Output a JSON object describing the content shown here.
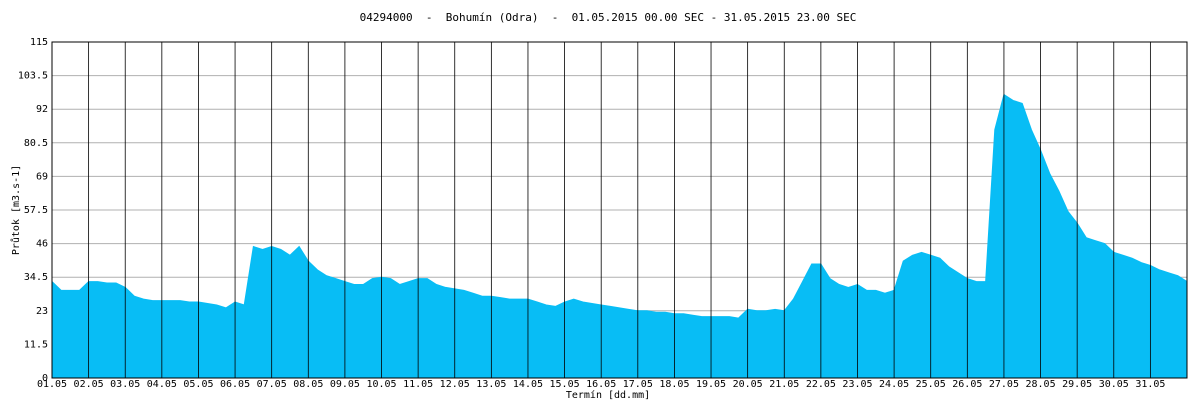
{
  "chart_data": {
    "type": "area",
    "title": "04294000  -  Bohumín (Odra)  -  01.05.2015 00.00 SEC - 31.05.2015 23.00 SEC",
    "ylabel": "Průtok [m3.s-1]",
    "xlabel": "Termín [dd.mm]",
    "color": "#08bdf5",
    "grid": true,
    "xlim": [
      0,
      744
    ],
    "ylim": [
      0,
      115
    ],
    "yticks": [
      0,
      11.5,
      23,
      34.5,
      46,
      57.5,
      69,
      80.5,
      92,
      103.5,
      115
    ],
    "xticks": [
      {
        "value": 0,
        "label": "01.05"
      },
      {
        "value": 24,
        "label": "02.05"
      },
      {
        "value": 48,
        "label": "03.05"
      },
      {
        "value": 72,
        "label": "04.05"
      },
      {
        "value": 96,
        "label": "05.05"
      },
      {
        "value": 120,
        "label": "06.05"
      },
      {
        "value": 144,
        "label": "07.05"
      },
      {
        "value": 168,
        "label": "08.05"
      },
      {
        "value": 192,
        "label": "09.05"
      },
      {
        "value": 216,
        "label": "10.05"
      },
      {
        "value": 240,
        "label": "11.05"
      },
      {
        "value": 264,
        "label": "12.05"
      },
      {
        "value": 288,
        "label": "13.05"
      },
      {
        "value": 312,
        "label": "14.05"
      },
      {
        "value": 336,
        "label": "15.05"
      },
      {
        "value": 360,
        "label": "16.05"
      },
      {
        "value": 384,
        "label": "17.05"
      },
      {
        "value": 408,
        "label": "18.05"
      },
      {
        "value": 432,
        "label": "19.05"
      },
      {
        "value": 456,
        "label": "20.05"
      },
      {
        "value": 480,
        "label": "21.05"
      },
      {
        "value": 504,
        "label": "22.05"
      },
      {
        "value": 528,
        "label": "23.05"
      },
      {
        "value": 552,
        "label": "24.05"
      },
      {
        "value": 576,
        "label": "25.05"
      },
      {
        "value": 600,
        "label": "26.05"
      },
      {
        "value": 624,
        "label": "27.05"
      },
      {
        "value": 648,
        "label": "28.05"
      },
      {
        "value": 672,
        "label": "29.05"
      },
      {
        "value": 696,
        "label": "30.05"
      },
      {
        "value": 720,
        "label": "31.05"
      }
    ],
    "x": [
      0,
      6,
      12,
      18,
      24,
      30,
      36,
      42,
      48,
      54,
      60,
      66,
      72,
      78,
      84,
      90,
      96,
      102,
      108,
      114,
      120,
      126,
      132,
      138,
      144,
      150,
      156,
      162,
      168,
      174,
      180,
      186,
      192,
      198,
      204,
      210,
      216,
      222,
      228,
      234,
      240,
      246,
      252,
      258,
      264,
      270,
      276,
      282,
      288,
      294,
      300,
      306,
      312,
      318,
      324,
      330,
      336,
      342,
      348,
      354,
      360,
      366,
      372,
      378,
      384,
      390,
      396,
      402,
      408,
      414,
      420,
      426,
      432,
      438,
      444,
      450,
      456,
      462,
      468,
      474,
      480,
      486,
      492,
      498,
      504,
      510,
      516,
      522,
      528,
      534,
      540,
      546,
      552,
      558,
      564,
      570,
      576,
      582,
      588,
      594,
      600,
      606,
      612,
      618,
      624,
      630,
      636,
      642,
      648,
      654,
      660,
      666,
      672,
      678,
      684,
      690,
      696,
      702,
      708,
      714,
      720,
      726,
      732,
      738,
      744
    ],
    "values": [
      33,
      30,
      30,
      30,
      33,
      33,
      32.5,
      32.5,
      31,
      28,
      27,
      26.5,
      26.5,
      26.5,
      26.5,
      26,
      26,
      25.5,
      25,
      24,
      26,
      25,
      45,
      44,
      45,
      44,
      42,
      45,
      40,
      37,
      35,
      34,
      33,
      32,
      32,
      34,
      34.5,
      34,
      32,
      33,
      34,
      34,
      32,
      31,
      30.5,
      30,
      29,
      28,
      28,
      27.5,
      27,
      27,
      27,
      26,
      25,
      24.5,
      26,
      27,
      26,
      25.5,
      25,
      24.5,
      24,
      23.5,
      23,
      23,
      22.5,
      22.5,
      22,
      22,
      21.5,
      21,
      21,
      21,
      21,
      20.5,
      23.5,
      23,
      23,
      23.5,
      23,
      27,
      33,
      39,
      39,
      34,
      32,
      31,
      32,
      30,
      30,
      29,
      30,
      40,
      42,
      43,
      42,
      41,
      38,
      36,
      34,
      33,
      33,
      85,
      97,
      95,
      94,
      85,
      78,
      70,
      64,
      57,
      53,
      48,
      47,
      46,
      43,
      42,
      41,
      39.5,
      38.5,
      37,
      36,
      35,
      33
    ]
  }
}
